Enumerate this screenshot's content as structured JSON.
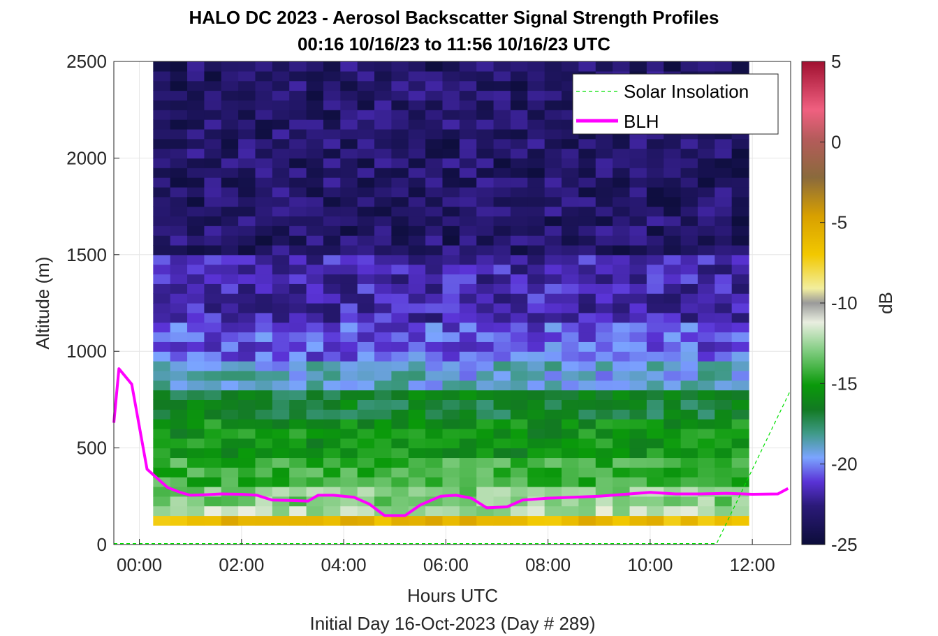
{
  "chart_data": {
    "type": "heatmap",
    "title": "HALO DC 2023 - Aerosol Backscatter Signal Strength Profiles",
    "subtitle": "00:16 10/16/23 to 11:56 10/16/23  UTC",
    "xlabel": "Hours UTC",
    "xlabel2": "Initial Day 16-Oct-2023 (Day # 289)",
    "ylabel": "Altitude (m)",
    "colorbar_label": "dB",
    "xlim": [
      -0.5,
      12.75
    ],
    "ylim": [
      0,
      2500
    ],
    "clim": [
      -25,
      5
    ],
    "x_ticks": [
      0,
      2,
      4,
      6,
      8,
      10,
      12
    ],
    "x_tick_labels": [
      "00:00",
      "02:00",
      "04:00",
      "06:00",
      "08:00",
      "10:00",
      "12:00"
    ],
    "y_ticks": [
      0,
      500,
      1000,
      1500,
      2000,
      2500
    ],
    "y_tick_labels": [
      "0",
      "500",
      "1000",
      "1500",
      "2000",
      "2500"
    ],
    "colorbar_ticks": [
      5,
      0,
      -5,
      -10,
      -15,
      -20,
      -25
    ],
    "colorbar_tick_labels": [
      "5",
      "0",
      "-5",
      "-10",
      "-15",
      "-20",
      "-25"
    ],
    "grid": true,
    "legend_position": "top-right",
    "legend": [
      {
        "label": "Solar Insolation",
        "style": "dashed",
        "color": "#00e000"
      },
      {
        "label": "BLH",
        "style": "solid",
        "color": "#ff00ff"
      }
    ],
    "heatmap": {
      "time_start": 0.27,
      "time_end": 11.93,
      "time_columns": 35,
      "altitude_bin_m": 50,
      "altitude_top_m": 2500,
      "altitude_bottom_m": 100,
      "profile_db": [
        {
          "alt_max": 150,
          "db": -6
        },
        {
          "alt_max": 200,
          "db": -12
        },
        {
          "alt_max": 300,
          "db": -13
        },
        {
          "alt_max": 450,
          "db": -14.5
        },
        {
          "alt_max": 650,
          "db": -15.8
        },
        {
          "alt_max": 800,
          "db": -17
        },
        {
          "alt_max": 950,
          "db": -19.5
        },
        {
          "alt_max": 1150,
          "db": -21
        },
        {
          "alt_max": 1500,
          "db": -22.2
        },
        {
          "alt_max": 2500,
          "db": -23.6
        }
      ]
    },
    "series": [
      {
        "name": "BLH",
        "x": [
          -0.5,
          -0.4,
          -0.15,
          0.15,
          0.55,
          0.8,
          1.0,
          1.3,
          1.6,
          2.0,
          2.3,
          2.6,
          3.0,
          3.3,
          3.5,
          3.8,
          4.2,
          4.5,
          4.8,
          5.2,
          5.5,
          5.9,
          6.2,
          6.5,
          6.8,
          7.2,
          7.5,
          8.0,
          8.5,
          9.0,
          9.5,
          10.0,
          10.5,
          11.0,
          11.5,
          12.0,
          12.5,
          12.7
        ],
        "y": [
          630,
          910,
          830,
          390,
          295,
          270,
          255,
          258,
          262,
          260,
          255,
          230,
          228,
          225,
          255,
          255,
          245,
          210,
          150,
          150,
          205,
          250,
          255,
          240,
          190,
          195,
          230,
          240,
          245,
          250,
          260,
          270,
          262,
          262,
          265,
          260,
          262,
          290
        ]
      },
      {
        "name": "Solar Insolation",
        "x": [
          -0.5,
          11.3,
          12.75
        ],
        "y": [
          5,
          5,
          800
        ]
      }
    ]
  }
}
